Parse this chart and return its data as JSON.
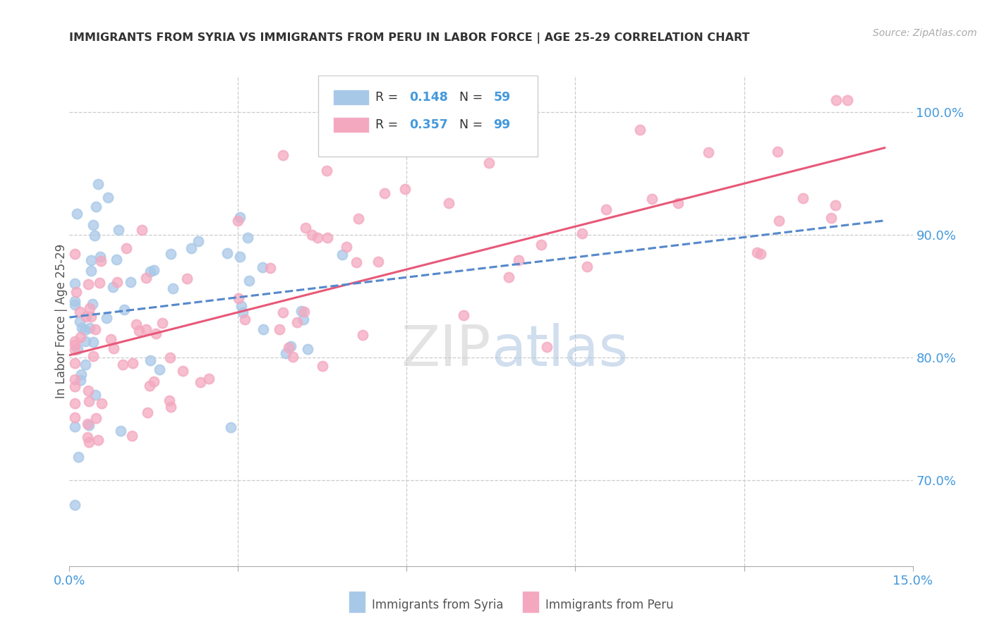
{
  "title": "IMMIGRANTS FROM SYRIA VS IMMIGRANTS FROM PERU IN LABOR FORCE | AGE 25-29 CORRELATION CHART",
  "source": "Source: ZipAtlas.com",
  "ylabel": "In Labor Force | Age 25-29",
  "xlim": [
    0.0,
    0.15
  ],
  "ylim": [
    0.63,
    1.03
  ],
  "ytick_vals": [
    0.7,
    0.8,
    0.9,
    1.0
  ],
  "ytick_labels": [
    "70.0%",
    "80.0%",
    "90.0%",
    "100.0%"
  ],
  "R_syria": 0.148,
  "N_syria": 59,
  "R_peru": 0.357,
  "N_peru": 99,
  "color_syria": "#a8c8e8",
  "color_peru": "#f4a8c0",
  "line_color_syria": "#5588cc",
  "line_color_peru": "#e85878",
  "watermark_zip_color": "#cccccc",
  "watermark_atlas_color": "#aac4e0"
}
